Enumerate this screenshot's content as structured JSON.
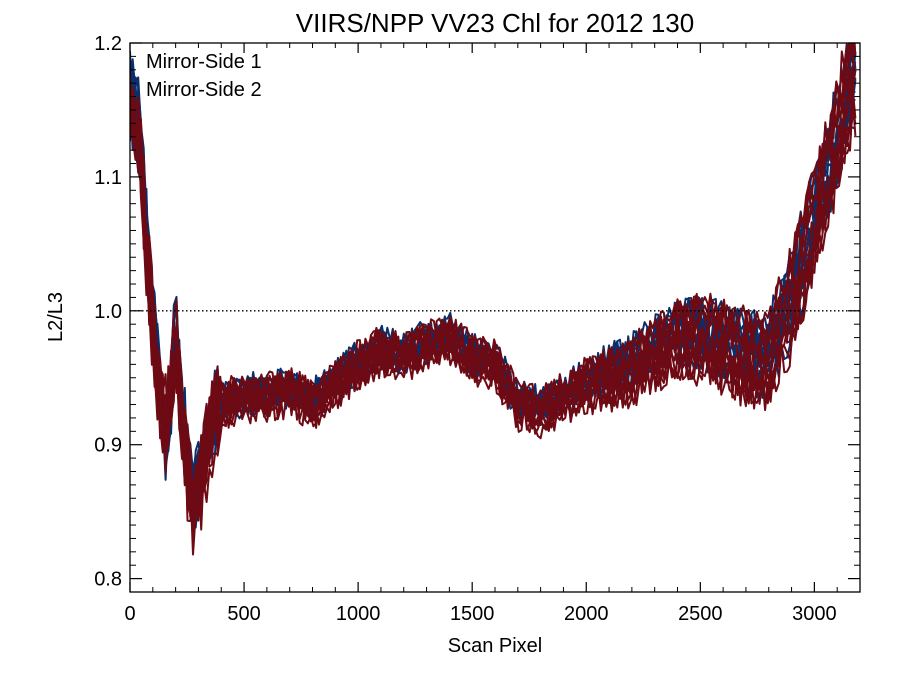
{
  "chart_data": {
    "type": "line",
    "title": "VIIRS/NPP VV23 Chl for 2012 130",
    "xlabel": "Scan Pixel",
    "ylabel": "L2/L3",
    "xlim": [
      0,
      3200
    ],
    "ylim": [
      0.79,
      1.2
    ],
    "x_ticks": [
      0,
      500,
      1000,
      1500,
      2000,
      2500,
      3000
    ],
    "x_tick_labels": [
      "0",
      "500",
      "1000",
      "1500",
      "2000",
      "2500",
      "3000"
    ],
    "y_ticks": [
      0.8,
      0.9,
      1.0,
      1.1,
      1.2
    ],
    "y_tick_labels": [
      "0.8",
      "0.9",
      "1.0",
      "1.1",
      "1.2"
    ],
    "reference_line": {
      "y": 1.0,
      "style": "dotted"
    },
    "legend_position": "top-left",
    "grid": false,
    "colors": {
      "mirror_side_1": "#0b2f6b",
      "mirror_side_2": "#6e0a14"
    },
    "series": [
      {
        "name": "Mirror-Side 1",
        "color": "#0b2f6b",
        "curve_count": 10,
        "profile": [
          [
            0,
            1.16
          ],
          [
            40,
            1.14
          ],
          [
            80,
            1.04
          ],
          [
            120,
            0.96
          ],
          [
            160,
            0.9
          ],
          [
            200,
            0.99
          ],
          [
            230,
            0.92
          ],
          [
            280,
            0.86
          ],
          [
            330,
            0.9
          ],
          [
            380,
            0.93
          ],
          [
            500,
            0.94
          ],
          [
            700,
            0.945
          ],
          [
            800,
            0.935
          ],
          [
            900,
            0.95
          ],
          [
            1000,
            0.965
          ],
          [
            1100,
            0.975
          ],
          [
            1200,
            0.97
          ],
          [
            1300,
            0.98
          ],
          [
            1400,
            0.985
          ],
          [
            1500,
            0.97
          ],
          [
            1600,
            0.965
          ],
          [
            1700,
            0.935
          ],
          [
            1800,
            0.93
          ],
          [
            1900,
            0.94
          ],
          [
            2000,
            0.95
          ],
          [
            2100,
            0.96
          ],
          [
            2200,
            0.965
          ],
          [
            2300,
            0.98
          ],
          [
            2400,
            0.99
          ],
          [
            2500,
            0.99
          ],
          [
            2600,
            0.985
          ],
          [
            2700,
            0.975
          ],
          [
            2800,
            0.975
          ],
          [
            2900,
            1.02
          ],
          [
            3000,
            1.08
          ],
          [
            3100,
            1.14
          ],
          [
            3170,
            1.19
          ]
        ]
      },
      {
        "name": "Mirror-Side 2",
        "color": "#6e0a14",
        "curve_count": 12,
        "profile": [
          [
            0,
            1.15
          ],
          [
            40,
            1.13
          ],
          [
            80,
            1.03
          ],
          [
            120,
            0.95
          ],
          [
            160,
            0.91
          ],
          [
            200,
            0.98
          ],
          [
            230,
            0.91
          ],
          [
            280,
            0.85
          ],
          [
            330,
            0.89
          ],
          [
            380,
            0.93
          ],
          [
            500,
            0.935
          ],
          [
            700,
            0.94
          ],
          [
            800,
            0.93
          ],
          [
            900,
            0.945
          ],
          [
            1000,
            0.96
          ],
          [
            1100,
            0.97
          ],
          [
            1200,
            0.965
          ],
          [
            1300,
            0.975
          ],
          [
            1400,
            0.98
          ],
          [
            1500,
            0.965
          ],
          [
            1600,
            0.96
          ],
          [
            1700,
            0.93
          ],
          [
            1800,
            0.925
          ],
          [
            1900,
            0.935
          ],
          [
            2000,
            0.945
          ],
          [
            2100,
            0.95
          ],
          [
            2200,
            0.955
          ],
          [
            2300,
            0.97
          ],
          [
            2400,
            0.98
          ],
          [
            2500,
            0.98
          ],
          [
            2600,
            0.975
          ],
          [
            2700,
            0.965
          ],
          [
            2800,
            0.965
          ],
          [
            2900,
            1.01
          ],
          [
            3000,
            1.07
          ],
          [
            3100,
            1.13
          ],
          [
            3170,
            1.18
          ]
        ]
      }
    ]
  }
}
